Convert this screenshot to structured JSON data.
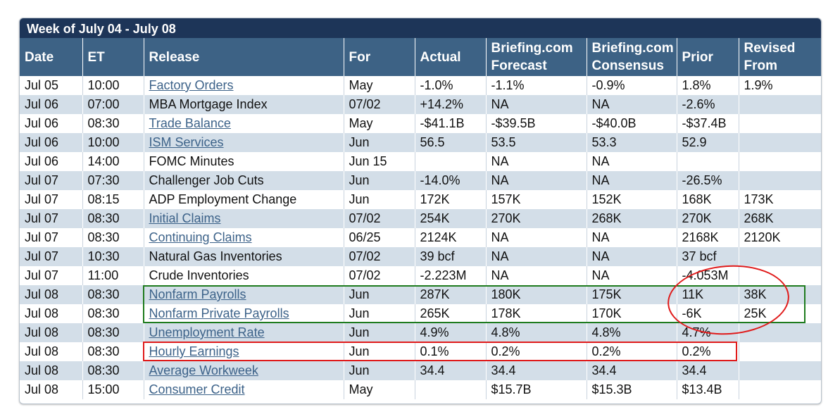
{
  "title": "Week of July 04 - July 08",
  "columns": [
    "Date",
    "ET",
    "Release",
    "For",
    "Actual",
    "Briefing.com Forecast",
    "Briefing.com Consensus",
    "Prior",
    "Revised From"
  ],
  "rows": [
    {
      "date": "Jul 05",
      "et": "10:00",
      "release": "Factory Orders",
      "link": true,
      "for": "May",
      "actual": "-1.0%",
      "forecast": "-1.1%",
      "consensus": "-0.9%",
      "prior": "1.8%",
      "revised": "1.9%"
    },
    {
      "date": "Jul 06",
      "et": "07:00",
      "release": "MBA Mortgage Index",
      "link": false,
      "for": "07/02",
      "actual": "+14.2%",
      "forecast": "NA",
      "consensus": "NA",
      "prior": "-2.6%",
      "revised": ""
    },
    {
      "date": "Jul 06",
      "et": "08:30",
      "release": "Trade Balance",
      "link": true,
      "for": "May",
      "actual": "-$41.1B",
      "forecast": "-$39.5B",
      "consensus": "-$40.0B",
      "prior": "-$37.4B",
      "revised": ""
    },
    {
      "date": "Jul 06",
      "et": "10:00",
      "release": "ISM Services",
      "link": true,
      "for": "Jun",
      "actual": "56.5",
      "forecast": "53.5",
      "consensus": "53.3",
      "prior": "52.9",
      "revised": ""
    },
    {
      "date": "Jul 06",
      "et": "14:00",
      "release": "FOMC Minutes",
      "link": false,
      "for": "Jun 15",
      "actual": "",
      "forecast": "NA",
      "consensus": "NA",
      "prior": "",
      "revised": ""
    },
    {
      "date": "Jul 07",
      "et": "07:30",
      "release": "Challenger Job Cuts",
      "link": false,
      "for": "Jun",
      "actual": "-14.0%",
      "forecast": "NA",
      "consensus": "NA",
      "prior": "-26.5%",
      "revised": ""
    },
    {
      "date": "Jul 07",
      "et": "08:15",
      "release": "ADP Employment Change",
      "link": false,
      "for": "Jun",
      "actual": "172K",
      "forecast": "157K",
      "consensus": "152K",
      "prior": "168K",
      "revised": "173K"
    },
    {
      "date": "Jul 07",
      "et": "08:30",
      "release": "Initial Claims",
      "link": true,
      "for": "07/02",
      "actual": "254K",
      "forecast": "270K",
      "consensus": "268K",
      "prior": "270K",
      "revised": "268K"
    },
    {
      "date": "Jul 07",
      "et": "08:30",
      "release": "Continuing Claims",
      "link": true,
      "for": "06/25",
      "actual": "2124K",
      "forecast": "NA",
      "consensus": "NA",
      "prior": "2168K",
      "revised": "2120K"
    },
    {
      "date": "Jul 07",
      "et": "10:30",
      "release": "Natural Gas Inventories",
      "link": false,
      "for": "07/02",
      "actual": "39 bcf",
      "forecast": "NA",
      "consensus": "NA",
      "prior": "37 bcf",
      "revised": ""
    },
    {
      "date": "Jul 07",
      "et": "11:00",
      "release": "Crude Inventories",
      "link": false,
      "for": "07/02",
      "actual": "-2.223M",
      "forecast": "NA",
      "consensus": "NA",
      "prior": "-4.053M",
      "revised": ""
    },
    {
      "date": "Jul 08",
      "et": "08:30",
      "release": "Nonfarm Payrolls",
      "link": true,
      "for": "Jun",
      "actual": "287K",
      "forecast": "180K",
      "consensus": "175K",
      "prior": "11K",
      "revised": "38K"
    },
    {
      "date": "Jul 08",
      "et": "08:30",
      "release": "Nonfarm Private Payrolls",
      "link": true,
      "for": "Jun",
      "actual": "265K",
      "forecast": "178K",
      "consensus": "170K",
      "prior": "-6K",
      "revised": "25K"
    },
    {
      "date": "Jul 08",
      "et": "08:30",
      "release": "Unemployment Rate",
      "link": true,
      "for": "Jun",
      "actual": "4.9%",
      "forecast": "4.8%",
      "consensus": "4.8%",
      "prior": "4.7%",
      "revised": ""
    },
    {
      "date": "Jul 08",
      "et": "08:30",
      "release": "Hourly Earnings",
      "link": true,
      "for": "Jun",
      "actual": "0.1%",
      "forecast": "0.2%",
      "consensus": "0.2%",
      "prior": "0.2%",
      "revised": ""
    },
    {
      "date": "Jul 08",
      "et": "08:30",
      "release": "Average Workweek",
      "link": true,
      "for": "Jun",
      "actual": "34.4",
      "forecast": "34.4",
      "consensus": "34.4",
      "prior": "34.4",
      "revised": ""
    },
    {
      "date": "Jul 08",
      "et": "15:00",
      "release": "Consumer Credit",
      "link": true,
      "for": "May",
      "actual": "",
      "forecast": "$15.7B",
      "consensus": "$15.3B",
      "prior": "$13.4B",
      "revised": ""
    }
  ],
  "annotation_colors": {
    "green_box": "#1e7b1e",
    "red_box": "#e01a1a",
    "red_ellipse": "#e01a1a"
  },
  "colors": {
    "title_bar": "#1d3558",
    "header": "#3d6285",
    "stripe": "#d3dee8",
    "link": "#3c6289"
  }
}
